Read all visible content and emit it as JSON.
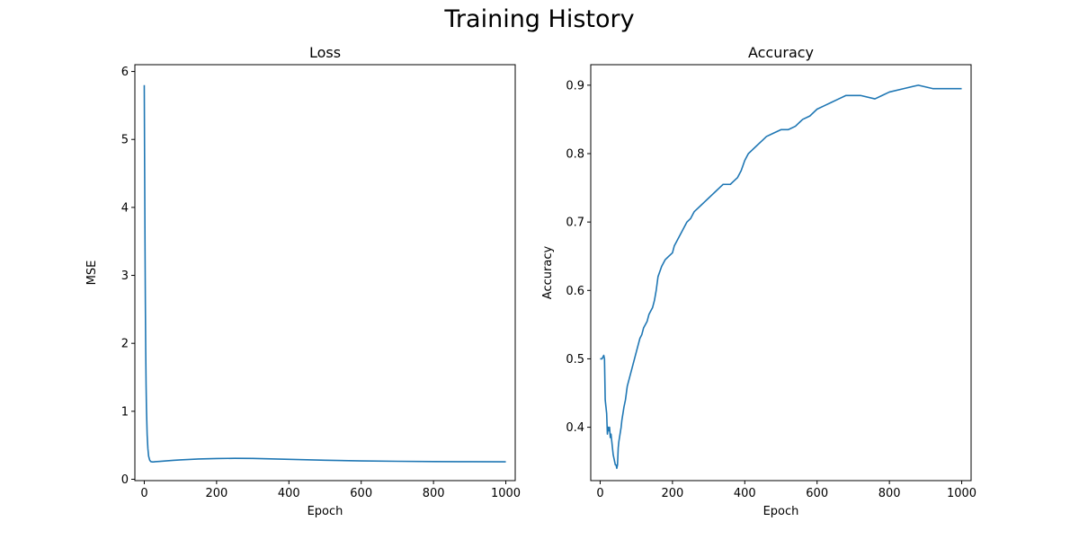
{
  "figure": {
    "title": "Training History"
  },
  "chart_data": [
    {
      "type": "line",
      "title": "Loss",
      "xlabel": "Epoch",
      "ylabel": "MSE",
      "xlim": [
        -26,
        1026
      ],
      "ylim": [
        -0.02,
        6.1
      ],
      "xticks": [
        0,
        200,
        400,
        600,
        800,
        1000
      ],
      "yticks": [
        0,
        1,
        2,
        3,
        4,
        5,
        6
      ],
      "grid": false,
      "color": "#1f77b4",
      "series": [
        {
          "x": [
            0,
            1,
            2,
            3,
            4,
            5,
            6,
            8,
            10,
            12,
            15,
            18,
            22,
            26,
            30,
            40,
            60,
            80,
            100,
            150,
            200,
            250,
            300,
            350,
            400,
            500,
            600,
            700,
            800,
            900,
            1000
          ],
          "values": [
            5.8,
            4.6,
            3.5,
            2.6,
            1.9,
            1.4,
            1.05,
            0.65,
            0.45,
            0.34,
            0.28,
            0.26,
            0.255,
            0.255,
            0.258,
            0.262,
            0.27,
            0.278,
            0.285,
            0.298,
            0.305,
            0.308,
            0.306,
            0.3,
            0.293,
            0.28,
            0.27,
            0.264,
            0.26,
            0.258,
            0.257
          ]
        }
      ]
    },
    {
      "type": "line",
      "title": "Accuracy",
      "xlabel": "Epoch",
      "ylabel": "Accuracy",
      "xlim": [
        -26,
        1026
      ],
      "ylim": [
        0.322,
        0.93
      ],
      "xticks": [
        0,
        200,
        400,
        600,
        800,
        1000
      ],
      "yticks": [
        0.4,
        0.5,
        0.6,
        0.7,
        0.8,
        0.9
      ],
      "grid": false,
      "color": "#1f77b4",
      "series": [
        {
          "x": [
            0,
            5,
            10,
            12,
            14,
            16,
            18,
            20,
            22,
            24,
            26,
            28,
            30,
            32,
            34,
            36,
            38,
            40,
            42,
            44,
            46,
            48,
            50,
            52,
            55,
            58,
            60,
            63,
            66,
            70,
            75,
            80,
            85,
            90,
            95,
            100,
            105,
            110,
            115,
            120,
            125,
            130,
            135,
            140,
            145,
            150,
            155,
            160,
            170,
            180,
            190,
            200,
            205,
            210,
            220,
            230,
            240,
            250,
            260,
            270,
            280,
            290,
            300,
            310,
            320,
            330,
            340,
            350,
            360,
            370,
            380,
            390,
            400,
            405,
            410,
            420,
            430,
            440,
            450,
            460,
            480,
            500,
            520,
            540,
            560,
            580,
            600,
            620,
            640,
            660,
            680,
            700,
            720,
            760,
            780,
            800,
            840,
            880,
            920,
            1000
          ],
          "values": [
            0.5,
            0.5,
            0.505,
            0.5,
            0.44,
            0.43,
            0.42,
            0.39,
            0.4,
            0.395,
            0.4,
            0.385,
            0.39,
            0.38,
            0.37,
            0.36,
            0.355,
            0.35,
            0.345,
            0.345,
            0.34,
            0.345,
            0.37,
            0.38,
            0.39,
            0.4,
            0.41,
            0.42,
            0.43,
            0.44,
            0.46,
            0.47,
            0.48,
            0.49,
            0.5,
            0.51,
            0.52,
            0.53,
            0.535,
            0.545,
            0.55,
            0.555,
            0.565,
            0.57,
            0.575,
            0.585,
            0.6,
            0.62,
            0.635,
            0.645,
            0.65,
            0.655,
            0.665,
            0.67,
            0.68,
            0.69,
            0.7,
            0.705,
            0.715,
            0.72,
            0.725,
            0.73,
            0.735,
            0.74,
            0.745,
            0.75,
            0.755,
            0.755,
            0.755,
            0.76,
            0.765,
            0.775,
            0.79,
            0.795,
            0.8,
            0.805,
            0.81,
            0.815,
            0.82,
            0.825,
            0.83,
            0.835,
            0.835,
            0.84,
            0.85,
            0.855,
            0.865,
            0.87,
            0.875,
            0.88,
            0.885,
            0.885,
            0.885,
            0.88,
            0.885,
            0.89,
            0.895,
            0.9,
            0.895,
            0.895
          ]
        }
      ]
    }
  ]
}
